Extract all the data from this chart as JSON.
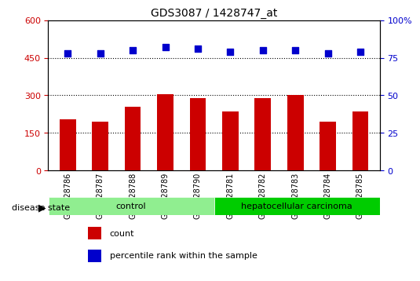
{
  "title": "GDS3087 / 1428747_at",
  "samples": [
    "GSM228786",
    "GSM228787",
    "GSM228788",
    "GSM228789",
    "GSM228790",
    "GSM228781",
    "GSM228782",
    "GSM228783",
    "GSM228784",
    "GSM228785"
  ],
  "bar_values": [
    205,
    195,
    255,
    305,
    290,
    235,
    290,
    300,
    195,
    235
  ],
  "percentile_values": [
    78,
    78,
    80,
    82,
    81,
    79,
    80,
    80,
    78,
    79
  ],
  "disease_groups": [
    {
      "label": "control",
      "start": 0,
      "end": 5,
      "color": "#90EE90"
    },
    {
      "label": "hepatocellular carcinoma",
      "start": 5,
      "end": 10,
      "color": "#00CC00"
    }
  ],
  "bar_color": "#CC0000",
  "dot_color": "#0000CC",
  "left_ylim": [
    0,
    600
  ],
  "right_ylim": [
    0,
    100
  ],
  "left_yticks": [
    0,
    150,
    300,
    450,
    600
  ],
  "right_yticks": [
    0,
    25,
    50,
    75,
    100
  ],
  "left_ytick_labels": [
    "0",
    "150",
    "300",
    "450",
    "600"
  ],
  "right_ytick_labels": [
    "0",
    "25",
    "50",
    "75",
    "100%"
  ],
  "grid_lines": [
    150,
    300,
    450
  ],
  "left_axis_color": "#CC0000",
  "right_axis_color": "#0000CC",
  "legend_items": [
    {
      "label": "count",
      "color": "#CC0000",
      "marker": "s"
    },
    {
      "label": "percentile rank within the sample",
      "color": "#0000CC",
      "marker": "s"
    }
  ],
  "disease_state_label": "disease state",
  "background_color": "#ffffff"
}
